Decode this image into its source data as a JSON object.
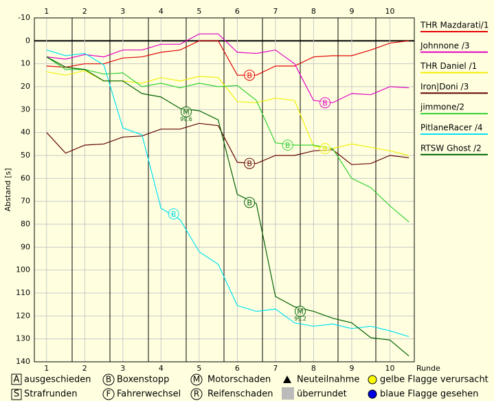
{
  "chart_data": {
    "type": "line",
    "y_label": "Abstand [s]",
    "x_label": "Runde",
    "xlim": [
      0.68,
      10.64
    ],
    "xticks": [
      1,
      2,
      3,
      4,
      5,
      6,
      7,
      8,
      9,
      10
    ],
    "ylim": [
      -10,
      140
    ],
    "y_inverted": true,
    "yticks": [
      -10,
      0,
      10,
      20,
      30,
      40,
      50,
      60,
      70,
      80,
      90,
      100,
      110,
      120,
      130,
      140
    ],
    "grid": true,
    "x": [
      1,
      1.5,
      2,
      2.5,
      3,
      3.5,
      4,
      4.5,
      5,
      5.5,
      6,
      6.5,
      7,
      7.5,
      8,
      8.5,
      9,
      9.5,
      10,
      10.5
    ],
    "series": [
      {
        "name": "THR Mazdarati/1",
        "color": "#e00000",
        "values": [
          11,
          11.5,
          10,
          10,
          7.5,
          7,
          5,
          4,
          0,
          0,
          15,
          15,
          11,
          11,
          7,
          6.5,
          6.5,
          4,
          1,
          0
        ]
      },
      {
        "name": "Johnnone /3",
        "color": "#e000c0",
        "values": [
          7,
          8,
          6,
          7,
          4,
          4,
          1.5,
          1.5,
          -3,
          -3,
          5,
          5.5,
          4,
          10,
          26,
          27,
          23,
          23.5,
          20,
          20.5
        ]
      },
      {
        "name": "THR Daniel /1",
        "color": "#f0f000",
        "values": [
          13.5,
          15,
          13,
          17.5,
          17.5,
          18.5,
          16,
          17.5,
          15.5,
          16,
          26.5,
          27,
          25,
          26,
          46,
          47,
          45,
          46.5,
          48,
          50
        ]
      },
      {
        "name": "Iron|Doni /3",
        "color": "#600000",
        "values": [
          40,
          49,
          45.5,
          45,
          42,
          41.5,
          38.5,
          38.5,
          36,
          37,
          53,
          53.5,
          50,
          50,
          48,
          47.5,
          54,
          53.5,
          50,
          51
        ]
      },
      {
        "name": "jimmone/2",
        "color": "#30d030",
        "values": [
          7,
          12.5,
          12.5,
          14.5,
          14,
          20,
          18.5,
          20.5,
          18.5,
          20,
          19.5,
          26,
          44.5,
          45.5,
          45.5,
          47,
          60,
          64,
          72,
          79
        ]
      },
      {
        "name": "PitlaneRacer /4",
        "color": "#00e0f0",
        "values": [
          4,
          6.5,
          5.5,
          10.5,
          38,
          41,
          73,
          78,
          92,
          97.5,
          115.5,
          118,
          117,
          123,
          124.5,
          123.5,
          125.5,
          124.5,
          126.5,
          129
        ]
      },
      {
        "name": "RTSW Ghost /2",
        "color": "#006000",
        "values": [
          7,
          11.5,
          12.5,
          17.5,
          17.5,
          23,
          24.5,
          29.5,
          30.5,
          34.5,
          67,
          71,
          111.5,
          116,
          118,
          121,
          123,
          129.5,
          130.5,
          137.5
        ]
      }
    ],
    "markers": [
      {
        "label": "B",
        "x": 6.32,
        "y": 15,
        "series": 0
      },
      {
        "label": "B",
        "x": 8.3,
        "y": 27,
        "series": 1
      },
      {
        "label": "B",
        "x": 8.3,
        "y": 47,
        "series": 2
      },
      {
        "label": "B",
        "x": 6.32,
        "y": 53.5,
        "series": 3
      },
      {
        "label": "B",
        "x": 7.32,
        "y": 45.5,
        "series": 4
      },
      {
        "label": "B",
        "x": 4.33,
        "y": 75.5,
        "series": 5
      },
      {
        "label": "M",
        "x": 4.66,
        "y": 31,
        "series": 6,
        "note": "99.6"
      },
      {
        "label": "B",
        "x": 6.32,
        "y": 70.5,
        "series": 6
      },
      {
        "label": "M",
        "x": 7.65,
        "y": 118,
        "series": 6,
        "note": "99.2"
      }
    ]
  },
  "key": [
    {
      "symbol": "A",
      "text": "ausgeschieden"
    },
    {
      "symbol": "B",
      "text": "Boxenstopp"
    },
    {
      "symbol": "M",
      "text": "Motorschaden"
    },
    {
      "text": "Neuteilnahme"
    },
    {
      "text": "gelbe Flagge verursacht"
    },
    {
      "symbol": "S",
      "text": "Strafrunden"
    },
    {
      "symbol": "F",
      "text": "Fahrerwechsel"
    },
    {
      "symbol": "R",
      "text": "Reifenschaden"
    },
    {
      "text": "überrundet"
    },
    {
      "text": "blaue Flagge gesehen"
    }
  ]
}
